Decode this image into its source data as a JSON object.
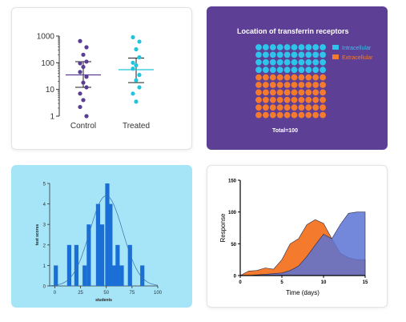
{
  "chart_data": [
    {
      "type": "scatter",
      "yscale": "log",
      "ylim": [
        1,
        1000
      ],
      "yticks": [
        "1",
        "10",
        "100",
        "1000"
      ],
      "categories": [
        "Control",
        "Treated"
      ],
      "colors": {
        "Control": "#5b3d94",
        "Treated": "#22c4dc"
      },
      "groups": [
        {
          "name": "Control",
          "mean": 35,
          "err_low": 12,
          "err_high": 110,
          "values": [
            650,
            380,
            200,
            110,
            95,
            70,
            45,
            30,
            18,
            12,
            7,
            4,
            2.2,
            1
          ]
        },
        {
          "name": "Treated",
          "mean": 55,
          "err_low": 18,
          "err_high": 150,
          "values": [
            900,
            620,
            320,
            160,
            100,
            80,
            60,
            35,
            22,
            12,
            7,
            3.5
          ]
        }
      ]
    },
    {
      "type": "waffle",
      "title": "Location of transferrin receptors",
      "total_label": "Total=100",
      "series": [
        {
          "name": "Intracellular",
          "value": 40,
          "color": "#2fc4ec"
        },
        {
          "name": "Extracellular",
          "value": 60,
          "color": "#f47b2e"
        }
      ]
    },
    {
      "type": "bar",
      "xlabel": "students",
      "ylabel": "test scores",
      "xlim": [
        -5,
        100
      ],
      "ylim": [
        0,
        5
      ],
      "xticks": [
        "0",
        "25",
        "50",
        "75",
        "100"
      ],
      "yticks": [
        "0",
        "1",
        "2",
        "3",
        "4",
        "5"
      ],
      "x": [
        1,
        14,
        21,
        29,
        33,
        42,
        46,
        51,
        54,
        58,
        61,
        65,
        73,
        85
      ],
      "values": [
        1,
        2,
        2,
        1,
        3,
        4,
        3,
        5,
        4,
        1,
        2,
        1,
        2,
        1
      ],
      "curve_mean": 50,
      "curve_sd": 16
    },
    {
      "type": "area",
      "xlabel": "Time (days)",
      "ylabel": "Response",
      "xlim": [
        0,
        15
      ],
      "ylim": [
        0,
        150
      ],
      "xticks": [
        "0",
        "5",
        "10",
        "15"
      ],
      "yticks": [
        "0",
        "50",
        "100",
        "150"
      ],
      "series": [
        {
          "name": "",
          "color": "#f47b2e",
          "x": [
            0,
            1,
            2,
            3,
            4,
            5,
            6,
            7,
            8,
            9,
            10,
            11,
            12,
            13,
            14,
            15
          ],
          "values": [
            0,
            7,
            8,
            12,
            10,
            25,
            50,
            58,
            80,
            88,
            82,
            58,
            35,
            28,
            25,
            25
          ]
        },
        {
          "name": "",
          "color": "#5b73d4",
          "x": [
            0,
            1,
            2,
            3,
            4,
            5,
            6,
            7,
            8,
            9,
            10,
            11,
            12,
            13,
            14,
            15
          ],
          "values": [
            0,
            0,
            1,
            2,
            3,
            4,
            8,
            15,
            30,
            48,
            65,
            58,
            80,
            98,
            100,
            100
          ]
        }
      ]
    }
  ]
}
